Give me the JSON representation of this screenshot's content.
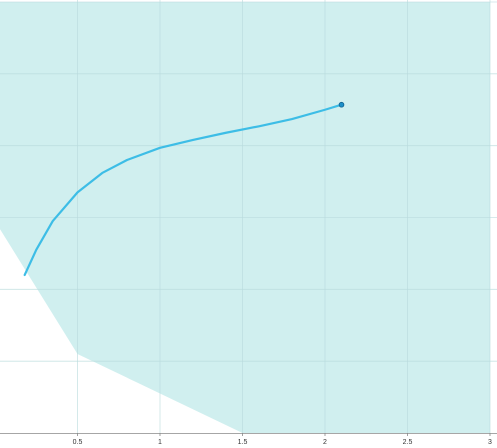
{
  "chart_data": {
    "type": "line",
    "title": "",
    "xlabel": "",
    "ylabel": "",
    "xlim": [
      0,
      3
    ],
    "ylim": [
      0,
      6
    ],
    "grid": true,
    "x_tick_values": [
      0.5,
      1,
      1.5,
      2,
      2.5,
      3
    ],
    "x_tick_labels": [
      "0.5",
      "1",
      "1.5",
      "2",
      "2.5",
      "3"
    ],
    "y_tick_values": [
      1,
      2,
      3,
      4,
      5,
      6
    ],
    "feasible_region": {
      "color": "#d0efef",
      "boundary": [
        {
          "x": 0.0,
          "y": 2.95
        },
        {
          "x": 0.5,
          "y": 1.1
        },
        {
          "x": 1.5,
          "y": 0.0
        },
        {
          "x": 3.0,
          "y": 0.0
        },
        {
          "x": 3.0,
          "y": 6.0
        },
        {
          "x": 0.0,
          "y": 6.0
        }
      ]
    },
    "series": [
      {
        "color": "#3dbde6",
        "marker_at_end": true,
        "x": [
          0.18,
          0.25,
          0.35,
          0.5,
          0.65,
          0.8,
          1.0,
          1.2,
          1.4,
          1.6,
          1.8,
          2.0,
          2.1
        ],
        "y": [
          2.2,
          2.55,
          2.95,
          3.35,
          3.62,
          3.8,
          3.97,
          4.08,
          4.18,
          4.27,
          4.37,
          4.5,
          4.57
        ]
      }
    ]
  }
}
